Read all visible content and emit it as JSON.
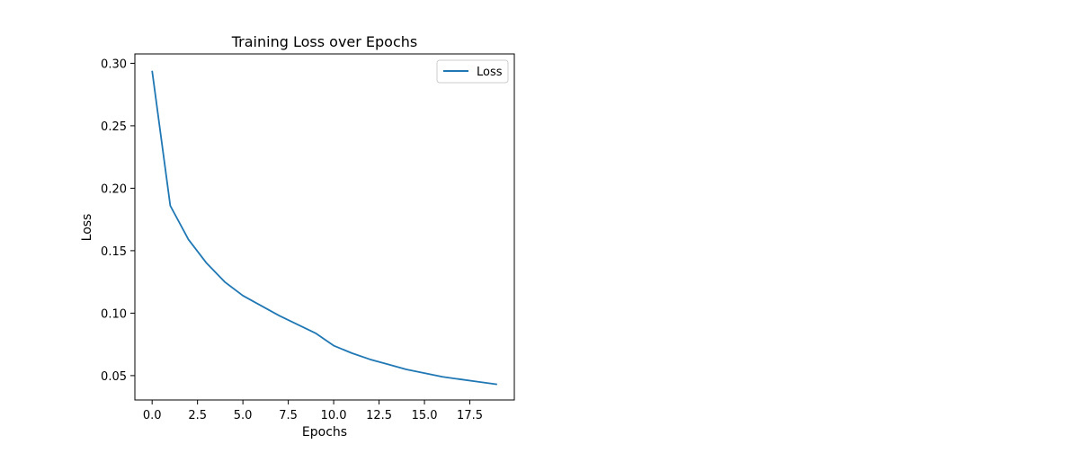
{
  "chart_data": {
    "type": "line",
    "title": "Training Loss over Epochs",
    "xlabel": "Epochs",
    "ylabel": "Loss",
    "xlim": [
      -0.95,
      19.95
    ],
    "ylim": [
      0.0305,
      0.3075
    ],
    "xticks": [
      0.0,
      2.5,
      5.0,
      7.5,
      10.0,
      12.5,
      15.0,
      17.5
    ],
    "xtick_labels": [
      "0.0",
      "2.5",
      "5.0",
      "7.5",
      "10.0",
      "12.5",
      "15.0",
      "17.5"
    ],
    "yticks": [
      0.05,
      0.1,
      0.15,
      0.2,
      0.25,
      0.3
    ],
    "ytick_labels": [
      "0.05",
      "0.10",
      "0.15",
      "0.20",
      "0.25",
      "0.30"
    ],
    "grid": false,
    "legend_position": "upper right",
    "series": [
      {
        "name": "Loss",
        "color": "#1f77b4",
        "x": [
          0,
          1,
          2,
          3,
          4,
          5,
          6,
          7,
          8,
          9,
          10,
          11,
          12,
          13,
          14,
          15,
          16,
          17,
          18,
          19
        ],
        "values": [
          0.294,
          0.186,
          0.159,
          0.14,
          0.125,
          0.114,
          0.106,
          0.098,
          0.091,
          0.084,
          0.074,
          0.068,
          0.063,
          0.059,
          0.055,
          0.052,
          0.049,
          0.047,
          0.045,
          0.043
        ]
      }
    ]
  }
}
